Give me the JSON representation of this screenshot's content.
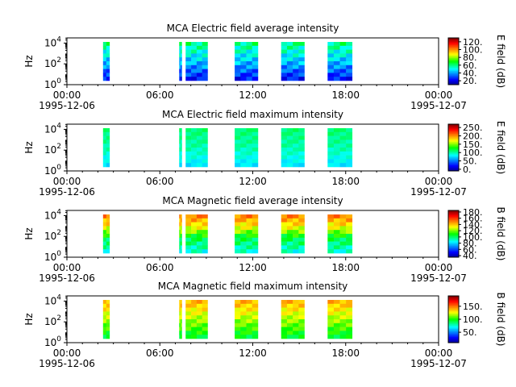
{
  "chart_data": [
    {
      "type": "heatmap",
      "title": "MCA  Electric field average intensity",
      "ylabel": "Hz",
      "y_ticks": [
        {
          "base": "10",
          "exp": "0"
        },
        {
          "base": "10",
          "exp": "2"
        },
        {
          "base": "10",
          "exp": "4"
        }
      ],
      "ylim": [
        1,
        31623
      ],
      "y_scale": "log",
      "x_ticks": [
        {
          "time": "00:00",
          "date": "1995-12-06"
        },
        {
          "time": "06:00",
          "date": ""
        },
        {
          "time": "12:00",
          "date": ""
        },
        {
          "time": "18:00",
          "date": ""
        },
        {
          "time": "00:00",
          "date": "1995-12-07"
        }
      ],
      "xlim": [
        "1995-12-06T00:00",
        "1995-12-07T00:00"
      ],
      "colorbar": {
        "label": "E field (dB)",
        "ticks": [
          "20.",
          "40.",
          "60.",
          "80.",
          "100.",
          "120."
        ],
        "range": [
          10,
          130
        ]
      },
      "data_intervals_utc": [
        [
          "02:20",
          "02:45"
        ],
        [
          "07:15",
          "07:25"
        ],
        [
          "07:40",
          "09:05"
        ],
        [
          "10:50",
          "12:20"
        ],
        [
          "13:50",
          "15:20"
        ],
        [
          "16:50",
          "18:25"
        ]
      ],
      "intensity_profile": [
        [
          0,
          60
        ],
        [
          0.5,
          45
        ],
        [
          1,
          25
        ]
      ]
    },
    {
      "type": "heatmap",
      "title": "MCA  Electric field maximum intensity",
      "ylabel": "Hz",
      "y_ticks": [
        {
          "base": "10",
          "exp": "0"
        },
        {
          "base": "10",
          "exp": "2"
        },
        {
          "base": "10",
          "exp": "4"
        }
      ],
      "ylim": [
        1,
        31623
      ],
      "y_scale": "log",
      "x_ticks": [
        {
          "time": "00:00",
          "date": "1995-12-06"
        },
        {
          "time": "06:00",
          "date": ""
        },
        {
          "time": "12:00",
          "date": ""
        },
        {
          "time": "18:00",
          "date": ""
        },
        {
          "time": "00:00",
          "date": "1995-12-07"
        }
      ],
      "xlim": [
        "1995-12-06T00:00",
        "1995-12-07T00:00"
      ],
      "colorbar": {
        "label": "E field (dB)",
        "ticks": [
          "0.",
          "50.",
          "100.",
          "150.",
          "200.",
          "250."
        ],
        "range": [
          -10,
          270
        ]
      },
      "data_intervals_utc": [
        [
          "02:20",
          "02:45"
        ],
        [
          "07:15",
          "07:25"
        ],
        [
          "07:40",
          "09:05"
        ],
        [
          "10:50",
          "12:20"
        ],
        [
          "13:50",
          "15:20"
        ],
        [
          "16:50",
          "18:25"
        ]
      ],
      "intensity_profile": [
        [
          0,
          110
        ],
        [
          0.5,
          100
        ],
        [
          1,
          80
        ]
      ]
    },
    {
      "type": "heatmap",
      "title": "MCA  Magnetic field average intensity",
      "ylabel": "Hz",
      "y_ticks": [
        {
          "base": "10",
          "exp": "0"
        },
        {
          "base": "10",
          "exp": "2"
        },
        {
          "base": "10",
          "exp": "4"
        }
      ],
      "ylim": [
        1,
        31623
      ],
      "y_scale": "log",
      "x_ticks": [
        {
          "time": "00:00",
          "date": "1995-12-06"
        },
        {
          "time": "06:00",
          "date": ""
        },
        {
          "time": "12:00",
          "date": ""
        },
        {
          "time": "18:00",
          "date": ""
        },
        {
          "time": "00:00",
          "date": "1995-12-07"
        }
      ],
      "xlim": [
        "1995-12-06T00:00",
        "1995-12-07T00:00"
      ],
      "colorbar": {
        "label": "B field (dB)",
        "ticks": [
          "40.",
          "60.",
          "80.",
          "100.",
          "120.",
          "140.",
          "160.",
          "180."
        ],
        "range": [
          35,
          185
        ]
      },
      "data_intervals_utc": [
        [
          "02:20",
          "02:45"
        ],
        [
          "07:15",
          "07:25"
        ],
        [
          "07:40",
          "09:05"
        ],
        [
          "10:50",
          "12:20"
        ],
        [
          "13:50",
          "15:20"
        ],
        [
          "16:50",
          "18:25"
        ]
      ],
      "intensity_profile": [
        [
          0,
          150
        ],
        [
          0.35,
          130
        ],
        [
          0.6,
          105
        ],
        [
          1,
          90
        ]
      ]
    },
    {
      "type": "heatmap",
      "title": "MCA  Magnetic field maximum intensity",
      "ylabel": "Hz",
      "y_ticks": [
        {
          "base": "10",
          "exp": "0"
        },
        {
          "base": "10",
          "exp": "2"
        },
        {
          "base": "10",
          "exp": "4"
        }
      ],
      "ylim": [
        1,
        31623
      ],
      "y_scale": "log",
      "x_ticks": [
        {
          "time": "00:00",
          "date": "1995-12-06"
        },
        {
          "time": "06:00",
          "date": ""
        },
        {
          "time": "12:00",
          "date": ""
        },
        {
          "time": "18:00",
          "date": ""
        },
        {
          "time": "00:00",
          "date": "1995-12-07"
        }
      ],
      "xlim": [
        "1995-12-06T00:00",
        "1995-12-07T00:00"
      ],
      "colorbar": {
        "label": "B field (dB)",
        "ticks": [
          "50.",
          "100.",
          "150."
        ],
        "range": [
          10,
          190
        ]
      },
      "data_intervals_utc": [
        [
          "02:20",
          "02:45"
        ],
        [
          "07:15",
          "07:25"
        ],
        [
          "07:40",
          "09:05"
        ],
        [
          "10:50",
          "12:20"
        ],
        [
          "13:50",
          "15:20"
        ],
        [
          "16:50",
          "18:25"
        ]
      ],
      "intensity_profile": [
        [
          0,
          140
        ],
        [
          0.45,
          120
        ],
        [
          1,
          95
        ]
      ]
    }
  ]
}
